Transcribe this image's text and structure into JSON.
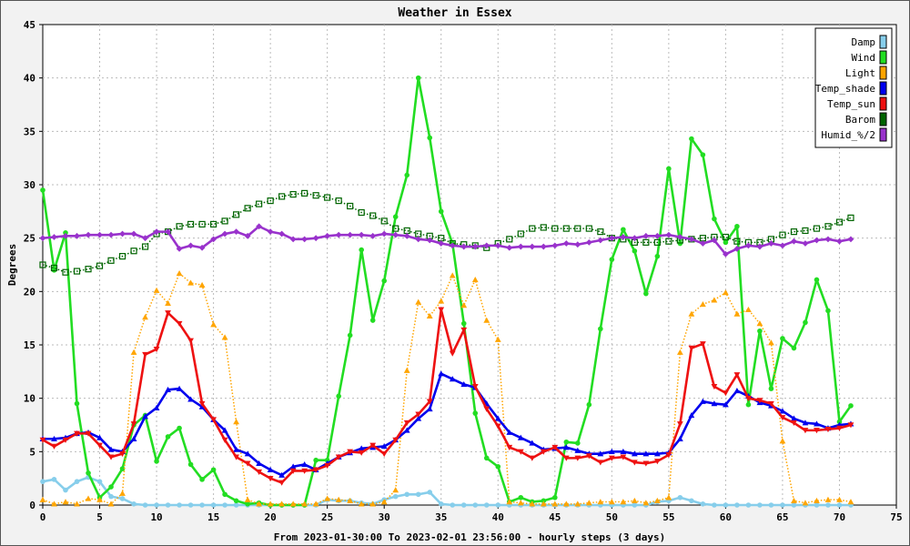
{
  "chart_data": {
    "type": "line",
    "title": "Weather in Essex",
    "xlabel": "From 2023-01-30:00 To 2023-02-01 23:56:00 - hourly steps (3 days)",
    "ylabel": "Degrees",
    "xlim": [
      0,
      75
    ],
    "ylim": [
      0,
      45
    ],
    "x_ticks": [
      0,
      5,
      10,
      15,
      20,
      25,
      30,
      35,
      40,
      45,
      50,
      55,
      60,
      65,
      70,
      75
    ],
    "y_ticks": [
      0,
      5,
      10,
      15,
      20,
      25,
      30,
      35,
      40,
      45
    ],
    "grid": true,
    "legend_position": "top-right",
    "x": [
      0,
      1,
      2,
      3,
      4,
      5,
      6,
      7,
      8,
      9,
      10,
      11,
      12,
      13,
      14,
      15,
      16,
      17,
      18,
      19,
      20,
      21,
      22,
      23,
      24,
      25,
      26,
      27,
      28,
      29,
      30,
      31,
      32,
      33,
      34,
      35,
      36,
      37,
      38,
      39,
      40,
      41,
      42,
      43,
      44,
      45,
      46,
      47,
      48,
      49,
      50,
      51,
      52,
      53,
      54,
      55,
      56,
      57,
      58,
      59,
      60,
      61,
      62,
      63,
      64,
      65,
      66,
      67,
      68,
      69,
      70,
      71
    ],
    "series": [
      {
        "name": "Damp",
        "color": "#87ceeb",
        "marker": "circle",
        "dotted": false,
        "values": [
          2.2,
          2.4,
          1.4,
          2.2,
          2.6,
          2.2,
          0.8,
          0.6,
          0.1,
          0,
          0,
          0,
          0,
          0,
          0,
          0,
          0,
          0,
          0,
          0,
          0,
          0,
          0,
          0,
          0,
          0.5,
          0.4,
          0.4,
          0.2,
          0.1,
          0.5,
          0.8,
          1.0,
          1.0,
          1.2,
          0.1,
          0,
          0,
          0,
          0,
          0,
          0,
          0,
          0,
          0,
          0,
          0,
          0,
          0,
          0,
          0,
          0,
          0,
          0,
          0.3,
          0.4,
          0.7,
          0.4,
          0.1,
          0,
          0,
          0,
          0,
          0,
          0,
          0,
          0,
          0,
          0,
          0,
          0,
          0
        ]
      },
      {
        "name": "Wind",
        "color": "#22dd22",
        "marker": "circle",
        "dotted": false,
        "values": [
          29.5,
          22,
          25.5,
          9.5,
          3,
          0.7,
          1.7,
          3.4,
          7.5,
          8.4,
          4.1,
          6.4,
          7.2,
          3.8,
          2.4,
          3.3,
          1.0,
          0.4,
          0.1,
          0.2,
          0,
          0,
          0,
          0,
          4.2,
          4.2,
          10.2,
          15.9,
          23.9,
          17.3,
          21,
          27,
          30.9,
          40,
          34.4,
          27.5,
          24.5,
          17,
          8.6,
          4.4,
          3.6,
          0.3,
          0.7,
          0.3,
          0.4,
          0.7,
          5.9,
          5.8,
          9.4,
          16.5,
          23,
          25.8,
          23.8,
          19.8,
          23.3,
          31.5,
          24.5,
          34.3,
          32.8,
          26.8,
          24.6,
          26.1,
          9.4,
          16.3,
          10.9,
          15.6,
          14.7,
          17.1,
          21.1,
          18.2,
          7.8,
          9.3
        ]
      },
      {
        "name": "Light",
        "color": "#ffa500",
        "marker": "triangle-up",
        "dotted": true,
        "values": [
          0.5,
          0.1,
          0.3,
          0.1,
          0.6,
          0.5,
          0.1,
          1.1,
          14.3,
          17.6,
          20.1,
          18.9,
          21.7,
          20.8,
          20.6,
          16.9,
          15.7,
          7.8,
          0.5,
          0.1,
          0.1,
          0.1,
          0.1,
          0.1,
          0.1,
          0.6,
          0.5,
          0.4,
          0.1,
          0.1,
          0.3,
          1.4,
          12.6,
          19.0,
          17.7,
          19.1,
          21.5,
          18.7,
          21.1,
          17.3,
          15.5,
          0.3,
          0.2,
          0.1,
          0.1,
          0.1,
          0.1,
          0.1,
          0.2,
          0.3,
          0.3,
          0.3,
          0.4,
          0.2,
          0.4,
          0.7,
          14.3,
          17.9,
          18.8,
          19.2,
          19.9,
          17.9,
          18.3,
          17.0,
          15.2,
          6.0,
          0.4,
          0.2,
          0.4,
          0.5,
          0.5,
          0.3
        ]
      },
      {
        "name": "Temp_shade",
        "color": "#0000ee",
        "marker": "triangle-up",
        "dotted": false,
        "values": [
          6.2,
          6.2,
          6.3,
          6.7,
          6.8,
          6.3,
          5.2,
          5.0,
          6.2,
          8.3,
          9.1,
          10.8,
          10.9,
          9.9,
          9.2,
          8.0,
          7.0,
          5.2,
          4.8,
          3.9,
          3.3,
          2.8,
          3.6,
          3.8,
          3.3,
          3.9,
          4.5,
          4.9,
          5.3,
          5.4,
          5.5,
          6.1,
          7.0,
          8.1,
          9.0,
          12.3,
          11.8,
          11.3,
          11.0,
          9.5,
          8.1,
          6.8,
          6.3,
          5.8,
          5.2,
          5.3,
          5.4,
          5.1,
          4.8,
          4.8,
          5.0,
          5.0,
          4.8,
          4.8,
          4.8,
          4.9,
          6.2,
          8.4,
          9.7,
          9.5,
          9.4,
          10.7,
          10.2,
          9.6,
          9.3,
          8.8,
          8.1,
          7.7,
          7.6,
          7.2,
          7.5,
          7.6
        ]
      },
      {
        "name": "Temp_sun",
        "color": "#ee1111",
        "marker": "triangle-down",
        "dotted": false,
        "values": [
          6.1,
          5.5,
          6.1,
          6.7,
          6.7,
          5.6,
          4.5,
          4.8,
          7.6,
          14.1,
          14.6,
          18.0,
          17.0,
          15.4,
          9.5,
          8.0,
          6.1,
          4.5,
          3.9,
          3.1,
          2.5,
          2.1,
          3.2,
          3.2,
          3.3,
          3.7,
          4.5,
          5.0,
          4.9,
          5.6,
          4.8,
          6.1,
          7.7,
          8.5,
          9.7,
          18.3,
          14.2,
          16.4,
          11.1,
          9.0,
          7.4,
          5.4,
          5.0,
          4.4,
          5.0,
          5.4,
          4.4,
          4.4,
          4.6,
          4.0,
          4.4,
          4.5,
          4.0,
          3.9,
          4.1,
          4.7,
          7.6,
          14.7,
          15.1,
          11.1,
          10.5,
          12.2,
          10.0,
          9.8,
          9.5,
          8.2,
          7.7,
          7.0,
          7.0,
          7.1,
          7.2,
          7.5
        ]
      },
      {
        "name": "Barom",
        "color": "#006400",
        "marker": "square",
        "dotted": true,
        "values": [
          22.5,
          22.2,
          21.8,
          21.9,
          22.1,
          22.4,
          22.9,
          23.3,
          23.8,
          24.2,
          25.4,
          25.6,
          26.1,
          26.3,
          26.3,
          26.3,
          26.6,
          27.2,
          27.8,
          28.2,
          28.5,
          28.9,
          29.1,
          29.2,
          29.0,
          28.8,
          28.5,
          28.0,
          27.4,
          27.1,
          26.6,
          25.9,
          25.7,
          25.4,
          25.2,
          25.0,
          24.5,
          24.4,
          24.3,
          24.1,
          24.5,
          24.9,
          25.4,
          25.9,
          26.0,
          25.9,
          25.9,
          25.9,
          25.9,
          25.6,
          25.0,
          24.9,
          24.6,
          24.6,
          24.6,
          24.7,
          24.8,
          24.9,
          25.0,
          25.1,
          25.1,
          24.7,
          24.6,
          24.6,
          24.9,
          25.3,
          25.6,
          25.7,
          25.9,
          26.1,
          26.5,
          26.9
        ]
      },
      {
        "name": "Humid_%/2",
        "color": "#9932cc",
        "marker": "diamond",
        "dotted": false,
        "values": [
          25.0,
          25.1,
          25.2,
          25.2,
          25.3,
          25.3,
          25.3,
          25.4,
          25.4,
          25.0,
          25.6,
          25.6,
          24.0,
          24.3,
          24.1,
          24.9,
          25.4,
          25.6,
          25.2,
          26.1,
          25.6,
          25.4,
          24.9,
          24.9,
          25.0,
          25.2,
          25.3,
          25.3,
          25.3,
          25.2,
          25.4,
          25.3,
          25.2,
          24.9,
          24.8,
          24.5,
          24.3,
          24.2,
          24.2,
          24.3,
          24.3,
          24.1,
          24.2,
          24.2,
          24.2,
          24.3,
          24.5,
          24.4,
          24.6,
          24.8,
          25.0,
          25.1,
          25.0,
          25.2,
          25.2,
          25.3,
          25.1,
          24.9,
          24.5,
          24.8,
          23.5,
          24.0,
          24.3,
          24.2,
          24.5,
          24.3,
          24.7,
          24.5,
          24.8,
          24.9,
          24.7,
          24.9
        ]
      }
    ]
  }
}
